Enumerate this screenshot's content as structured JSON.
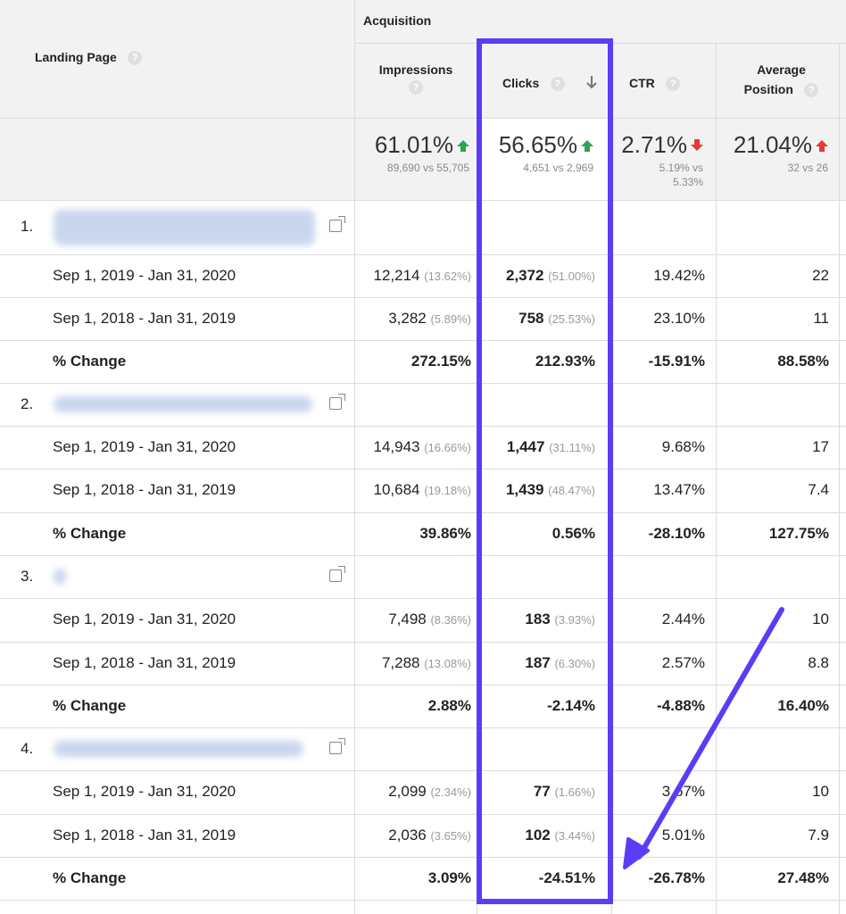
{
  "header": {
    "landing_page": "Landing Page",
    "acquisition": "Acquisition",
    "impressions": "Impressions",
    "clicks": "Clicks",
    "ctr": "CTR",
    "average_position_line1": "Average",
    "average_position_line2": "Position",
    "help_glyph": "?"
  },
  "summary": {
    "impressions": {
      "value": "61.01%",
      "sub": "89,690 vs 55,705"
    },
    "clicks": {
      "value": "56.65%",
      "sub": "4,651 vs 2,969"
    },
    "ctr": {
      "value": "2.71%",
      "sub1": "5.19% vs",
      "sub2": "5.33%"
    },
    "average_position": {
      "value": "21.04%",
      "sub": "32 vs 26"
    }
  },
  "groups": [
    {
      "index": "1.",
      "rows": [
        {
          "label": "Sep 1, 2019 - Jan 31, 2020",
          "impressions": "12,214",
          "impressions_pct": "(13.62%)",
          "clicks": "2,372",
          "clicks_pct": "(51.00%)",
          "ctr": "19.42%",
          "position": "22"
        },
        {
          "label": "Sep 1, 2018 - Jan 31, 2019",
          "impressions": "3,282",
          "impressions_pct": "(5.89%)",
          "clicks": "758",
          "clicks_pct": "(25.53%)",
          "ctr": "23.10%",
          "position": "11"
        },
        {
          "label": "% Change",
          "impressions": "272.15%",
          "clicks": "212.93%",
          "ctr": "-15.91%",
          "position": "88.58%"
        }
      ]
    },
    {
      "index": "2.",
      "rows": [
        {
          "label": "Sep 1, 2019 - Jan 31, 2020",
          "impressions": "14,943",
          "impressions_pct": "(16.66%)",
          "clicks": "1,447",
          "clicks_pct": "(31.11%)",
          "ctr": "9.68%",
          "position": "17"
        },
        {
          "label": "Sep 1, 2018 - Jan 31, 2019",
          "impressions": "10,684",
          "impressions_pct": "(19.18%)",
          "clicks": "1,439",
          "clicks_pct": "(48.47%)",
          "ctr": "13.47%",
          "position": "7.4"
        },
        {
          "label": "% Change",
          "impressions": "39.86%",
          "clicks": "0.56%",
          "ctr": "-28.10%",
          "position": "127.75%"
        }
      ]
    },
    {
      "index": "3.",
      "rows": [
        {
          "label": "Sep 1, 2019 - Jan 31, 2020",
          "impressions": "7,498",
          "impressions_pct": "(8.36%)",
          "clicks": "183",
          "clicks_pct": "(3.93%)",
          "ctr": "2.44%",
          "position": "10"
        },
        {
          "label": "Sep 1, 2018 - Jan 31, 2019",
          "impressions": "7,288",
          "impressions_pct": "(13.08%)",
          "clicks": "187",
          "clicks_pct": "(6.30%)",
          "ctr": "2.57%",
          "position": "8.8"
        },
        {
          "label": "% Change",
          "impressions": "2.88%",
          "clicks": "-2.14%",
          "ctr": "-4.88%",
          "position": "16.40%"
        }
      ]
    },
    {
      "index": "4.",
      "rows": [
        {
          "label": "Sep 1, 2019 - Jan 31, 2020",
          "impressions": "2,099",
          "impressions_pct": "(2.34%)",
          "clicks": "77",
          "clicks_pct": "(1.66%)",
          "ctr": "3.67%",
          "position": "10"
        },
        {
          "label": "Sep 1, 2018 - Jan 31, 2019",
          "impressions": "2,036",
          "impressions_pct": "(3.65%)",
          "clicks": "102",
          "clicks_pct": "(3.44%)",
          "ctr": "5.01%",
          "position": "7.9"
        },
        {
          "label": "% Change",
          "impressions": "3.09%",
          "clicks": "-24.51%",
          "ctr": "-26.78%",
          "position": "27.48%"
        }
      ]
    }
  ],
  "colors": {
    "highlight": "#5b3df5",
    "up_arrow": "#2ea44f",
    "down_arrow": "#e53935"
  },
  "icons": {
    "sort": "arrow-down-icon",
    "open_page": "open-in-new-icon",
    "help": "help-circle-icon"
  }
}
